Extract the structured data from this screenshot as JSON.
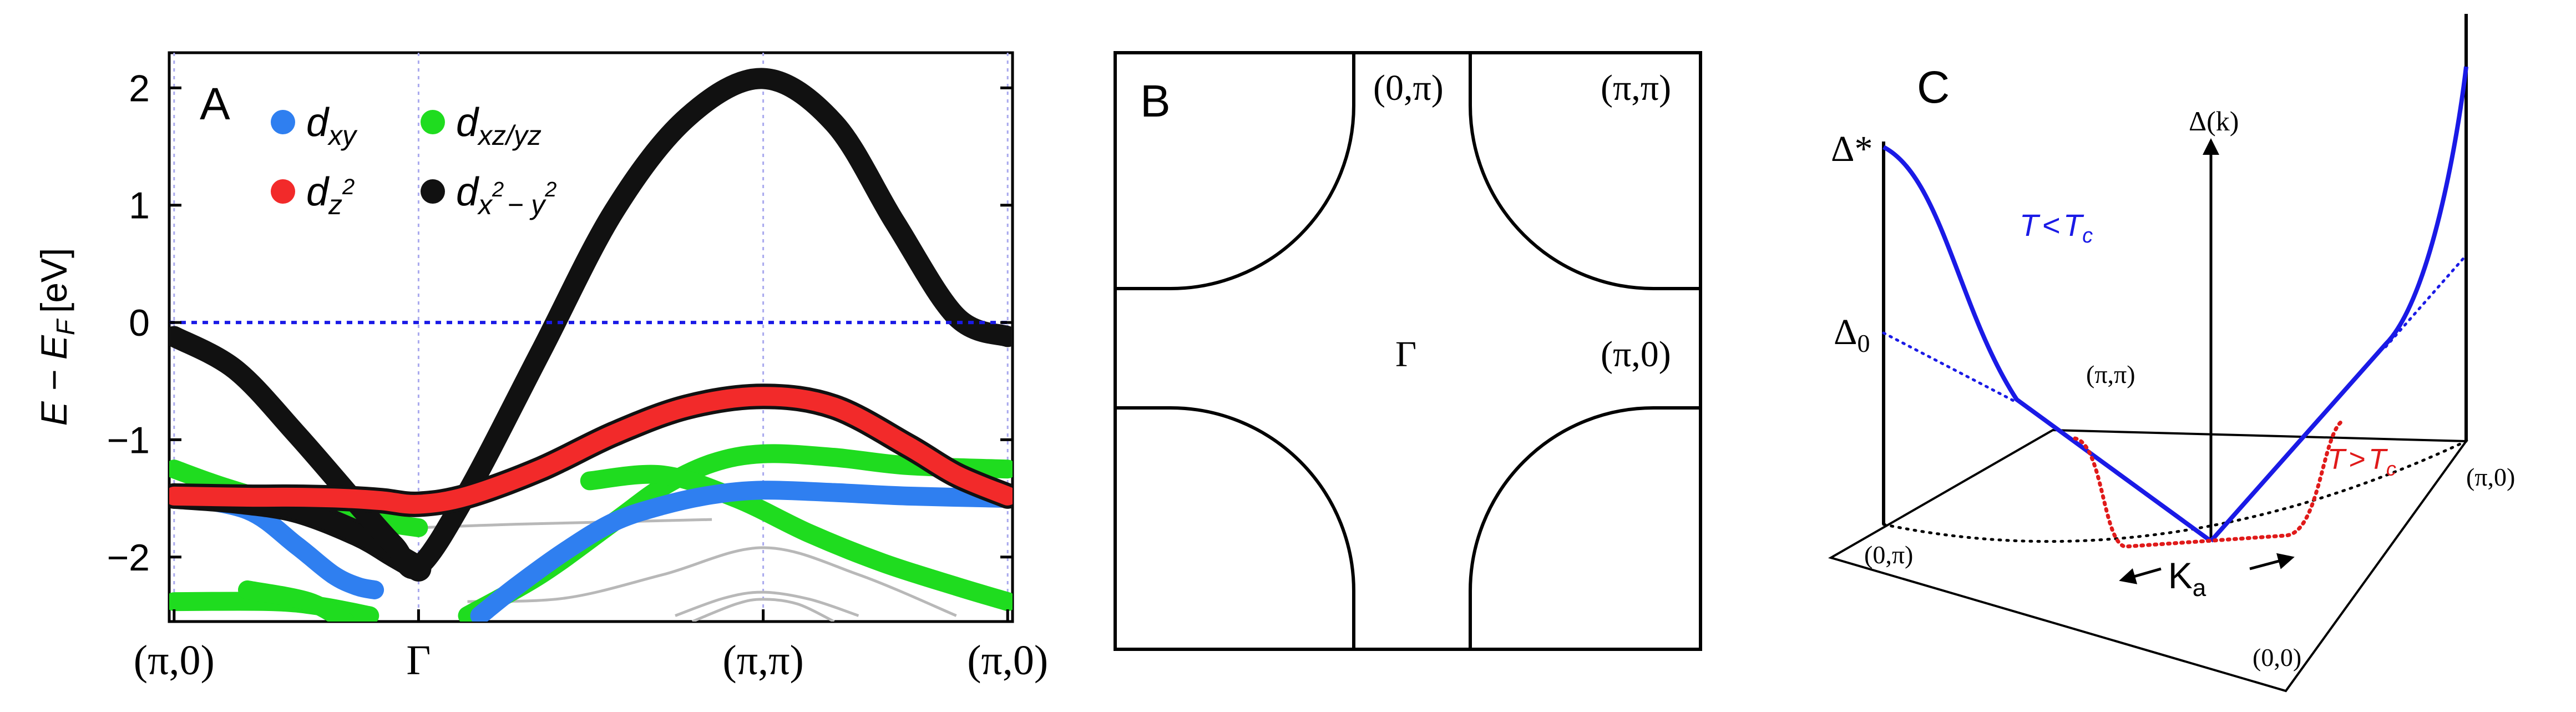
{
  "chart_data": [
    {
      "panel": "A",
      "type": "line",
      "panel_label": "A",
      "ylabel": "E − E",
      "ylabel_sub": "F",
      "ylabel_unit": "[eV]",
      "ylim": [
        -2.55,
        2.3
      ],
      "yticks": [
        "2",
        "1",
        "0",
        "−1",
        "−2"
      ],
      "ytick_values": [
        2,
        1,
        0,
        -1,
        -2
      ],
      "xticks": [
        "(π,0)",
        "Γ",
        "(π,π)",
        "(π,0)"
      ],
      "xtick_values": [
        0,
        1,
        2.41,
        3.41
      ],
      "xlim": [
        -0.02,
        3.43
      ],
      "fermi_level": 0,
      "legend": [
        {
          "base": "d",
          "sub": "xy",
          "sup": "",
          "color": "#2f7ff0"
        },
        {
          "base": "d",
          "sub": "xz/yz",
          "sup": "",
          "color": "#1fdc1f"
        },
        {
          "base": "d",
          "sub": "z",
          "sup": "2",
          "color": "#f22a2a"
        },
        {
          "base": "d",
          "sub": "x",
          "sup": "2",
          "tail": "− y",
          "tail_sup": "2",
          "color": "#111111"
        }
      ],
      "series": [
        {
          "color": "#111111",
          "x": [
            0,
            0.25,
            0.5,
            0.75,
            0.9,
            1.0,
            1.2,
            1.5,
            1.8,
            2.1,
            2.41,
            2.7,
            2.95,
            3.2,
            3.41
          ],
          "y": [
            -0.12,
            -0.4,
            -0.95,
            -1.55,
            -1.9,
            -2.08,
            -1.45,
            -0.25,
            0.95,
            1.75,
            2.08,
            1.7,
            0.85,
            0.05,
            -0.12
          ]
        },
        {
          "color": "#f22a2a",
          "x": [
            0,
            0.3,
            0.5,
            0.7,
            0.85,
            1.0,
            1.2,
            1.5,
            1.8,
            2.1,
            2.41,
            2.7,
            3.0,
            3.2,
            3.41
          ],
          "y": [
            -1.48,
            -1.49,
            -1.49,
            -1.5,
            -1.52,
            -1.55,
            -1.48,
            -1.25,
            -0.95,
            -0.72,
            -0.63,
            -0.72,
            -1.05,
            -1.3,
            -1.48
          ]
        },
        {
          "color": "#2f7ff0",
          "x": [
            0,
            0.3,
            0.5,
            0.65,
            0.75,
            0.82
          ],
          "y": [
            -1.48,
            -1.6,
            -1.9,
            -2.15,
            -2.25,
            -2.28
          ]
        },
        {
          "color": "#2f7ff0",
          "x": [
            1.25,
            1.4,
            1.6,
            1.8,
            2.0,
            2.2,
            2.41,
            2.7,
            3.0,
            3.41
          ],
          "y": [
            -2.5,
            -2.25,
            -1.95,
            -1.7,
            -1.56,
            -1.47,
            -1.43,
            -1.45,
            -1.48,
            -1.5
          ]
        },
        {
          "color": "#1fdc1f",
          "x": [
            0,
            0.2,
            0.45,
            0.7,
            0.9,
            1.0
          ],
          "y": [
            -1.25,
            -1.4,
            -1.55,
            -1.65,
            -1.72,
            -1.75
          ]
        },
        {
          "color": "#1fdc1f",
          "x": [
            0,
            0.4,
            0.6,
            0.8
          ],
          "y": [
            -2.38,
            -2.38,
            -2.42,
            -2.5
          ]
        },
        {
          "color": "#1fdc1f",
          "x": [
            0.3,
            0.55,
            0.7
          ],
          "y": [
            -2.28,
            -2.38,
            -2.55
          ]
        },
        {
          "color": "#1fdc1f",
          "x": [
            1.2,
            1.5,
            1.8,
            2.0,
            2.2,
            2.41,
            2.7,
            3.0,
            3.41
          ],
          "y": [
            -2.5,
            -2.15,
            -1.7,
            -1.4,
            -1.2,
            -1.12,
            -1.15,
            -1.22,
            -1.25
          ]
        },
        {
          "color": "#1fdc1f",
          "x": [
            1.7,
            2.0,
            2.3,
            2.6,
            2.9,
            3.2,
            3.41
          ],
          "y": [
            -1.35,
            -1.3,
            -1.5,
            -1.8,
            -2.05,
            -2.25,
            -2.38
          ]
        },
        {
          "color": "#111111",
          "x": [
            0,
            0.25,
            0.5,
            0.75,
            0.9,
            1.0
          ],
          "y": [
            -1.48,
            -1.52,
            -1.6,
            -1.8,
            -1.98,
            -2.1
          ]
        }
      ],
      "thin_bands": [
        {
          "color": "#b8b8b8",
          "x": [
            1.2,
            1.6,
            2.0,
            2.41,
            2.8,
            3.2
          ],
          "y": [
            -2.38,
            -2.35,
            -2.15,
            -1.92,
            -2.15,
            -2.5
          ]
        },
        {
          "color": "#b8b8b8",
          "x": [
            2.05,
            2.25,
            2.41,
            2.6,
            2.8
          ],
          "y": [
            -2.5,
            -2.35,
            -2.3,
            -2.36,
            -2.5
          ]
        },
        {
          "color": "#b8b8b8",
          "x": [
            2.12,
            2.3,
            2.41,
            2.55,
            2.7
          ],
          "y": [
            -2.55,
            -2.4,
            -2.36,
            -2.4,
            -2.55
          ]
        },
        {
          "color": "#b8b8b8",
          "x": [
            1.0,
            1.4,
            1.8,
            2.2
          ],
          "y": [
            -1.75,
            -1.72,
            -1.7,
            -1.68
          ]
        }
      ]
    },
    {
      "panel": "B",
      "type": "diagram",
      "panel_label": "B",
      "labels": {
        "top_mid": "(0,π)",
        "top_right": "(π,π)",
        "center": "Γ",
        "right_mid": "(π,0)"
      }
    },
    {
      "panel": "C",
      "type": "line",
      "panel_label": "C",
      "axis_label": "Δ(k)",
      "delta_star": "Δ*",
      "delta_zero_base": "Δ",
      "delta_zero_sub": "0",
      "corner_labels": {
        "pi_pi": "(π,π)",
        "pi_0": "(π,0)",
        "zero_pi": "(0,π)",
        "zero_zero": "(0,0)"
      },
      "ka_base": "K",
      "ka_sub": "a",
      "t_low": {
        "t": "T",
        "op": "<",
        "tc": "T",
        "sub": "c",
        "color": "#1a1ae6"
      },
      "t_high": {
        "t": "T",
        "op": ">",
        "tc": "T",
        "sub": "c",
        "color": "#e01a1a"
      }
    }
  ]
}
